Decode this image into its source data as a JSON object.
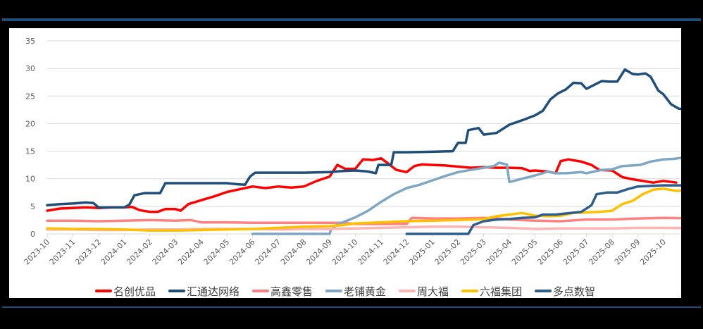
{
  "chart_data": {
    "type": "line",
    "title": "",
    "xlabel": "",
    "ylabel": "",
    "ylim": [
      0,
      35
    ],
    "yticks": [
      0,
      5,
      10,
      15,
      20,
      25,
      30,
      35
    ],
    "grid": true,
    "legend_position": "bottom",
    "x": [
      "2023-10",
      "2023-11",
      "2023-12",
      "2024-01",
      "2024-02",
      "2024-03",
      "2024-04",
      "2024-05",
      "2024-06",
      "2024-07",
      "2024-08",
      "2024-09",
      "2024-10",
      "2024-11",
      "2024-12",
      "2025-01",
      "2025-02",
      "2025-03",
      "2025-04",
      "2025-05",
      "2025-06",
      "2025-07",
      "2025-08",
      "2025-09",
      "2025-10"
    ],
    "series": [
      {
        "name": "名创优品",
        "color": "#ff0000",
        "points": [
          [
            0,
            4.2
          ],
          [
            0.5,
            4.6
          ],
          [
            1,
            4.7
          ],
          [
            1.5,
            4.8
          ],
          [
            2,
            4.7
          ],
          [
            2.5,
            4.8
          ],
          [
            3,
            4.8
          ],
          [
            3.3,
            4.9
          ],
          [
            3.6,
            4.3
          ],
          [
            4,
            4.0
          ],
          [
            4.3,
            4.0
          ],
          [
            4.6,
            4.5
          ],
          [
            5,
            4.5
          ],
          [
            5.2,
            4.2
          ],
          [
            5.5,
            5.4
          ],
          [
            6,
            6.1
          ],
          [
            6.5,
            6.8
          ],
          [
            7,
            7.6
          ],
          [
            7.5,
            8.1
          ],
          [
            8,
            8.6
          ],
          [
            8.5,
            8.3
          ],
          [
            9,
            8.6
          ],
          [
            9.5,
            8.4
          ],
          [
            10,
            8.6
          ],
          [
            10.5,
            9.6
          ],
          [
            11,
            10.4
          ],
          [
            11.3,
            12.5
          ],
          [
            11.6,
            11.8
          ],
          [
            12,
            11.8
          ],
          [
            12.3,
            13.5
          ],
          [
            12.7,
            13.4
          ],
          [
            13,
            13.7
          ],
          [
            13.3,
            12.7
          ],
          [
            13.6,
            11.6
          ],
          [
            14,
            11.2
          ],
          [
            14.3,
            12.3
          ],
          [
            14.6,
            12.6
          ],
          [
            15,
            12.5
          ],
          [
            15.5,
            12.4
          ],
          [
            16,
            12.2
          ],
          [
            16.5,
            12.0
          ],
          [
            17,
            12.1
          ],
          [
            17.5,
            12.0
          ],
          [
            18,
            12.0
          ],
          [
            18.5,
            11.9
          ],
          [
            18.8,
            11.4
          ],
          [
            19,
            11.5
          ],
          [
            19.5,
            11.3
          ],
          [
            19.8,
            11.0
          ],
          [
            20,
            13.2
          ],
          [
            20.3,
            13.5
          ],
          [
            20.8,
            13.1
          ],
          [
            21.2,
            12.5
          ],
          [
            21.5,
            11.6
          ],
          [
            22,
            11.5
          ],
          [
            22.4,
            10.3
          ],
          [
            22.8,
            9.9
          ],
          [
            23.2,
            9.6
          ],
          [
            23.6,
            9.3
          ],
          [
            24,
            9.6
          ],
          [
            24.5,
            9.3
          ]
        ]
      },
      {
        "name": "汇通达网络",
        "color": "#1f4e79",
        "points": [
          [
            0,
            5.2
          ],
          [
            0.5,
            5.4
          ],
          [
            1,
            5.5
          ],
          [
            1.5,
            5.7
          ],
          [
            1.8,
            5.6
          ],
          [
            2,
            4.8
          ],
          [
            2.5,
            4.8
          ],
          [
            3,
            4.8
          ],
          [
            3.2,
            5.3
          ],
          [
            3.4,
            7.0
          ],
          [
            3.8,
            7.4
          ],
          [
            4,
            7.4
          ],
          [
            4.4,
            7.4
          ],
          [
            4.6,
            9.2
          ],
          [
            5,
            9.2
          ],
          [
            6,
            9.2
          ],
          [
            7,
            9.2
          ],
          [
            7.4,
            9.0
          ],
          [
            7.7,
            8.9
          ],
          [
            7.9,
            10.4
          ],
          [
            8.1,
            11.1
          ],
          [
            9,
            11.1
          ],
          [
            10,
            11.1
          ],
          [
            11,
            11.2
          ],
          [
            11.5,
            11.4
          ],
          [
            12,
            11.5
          ],
          [
            12.5,
            11.3
          ],
          [
            12.8,
            11.0
          ],
          [
            12.9,
            12.5
          ],
          [
            13.4,
            12.5
          ],
          [
            13.5,
            14.8
          ],
          [
            14,
            14.8
          ],
          [
            15,
            14.9
          ],
          [
            15.8,
            15.0
          ],
          [
            16,
            16.5
          ],
          [
            16.3,
            16.5
          ],
          [
            16.4,
            18.8
          ],
          [
            16.8,
            19.2
          ],
          [
            17,
            18.0
          ],
          [
            17.5,
            18.3
          ],
          [
            18,
            19.8
          ],
          [
            18.5,
            20.6
          ],
          [
            19,
            21.5
          ],
          [
            19.3,
            22.3
          ],
          [
            19.6,
            24.4
          ],
          [
            19.9,
            25.5
          ],
          [
            20.2,
            26.2
          ],
          [
            20.5,
            27.4
          ],
          [
            20.8,
            27.3
          ],
          [
            21,
            26.3
          ],
          [
            21.3,
            27.0
          ],
          [
            21.6,
            27.7
          ],
          [
            21.9,
            27.6
          ],
          [
            22.2,
            27.6
          ],
          [
            22.5,
            29.8
          ],
          [
            22.8,
            29.0
          ],
          [
            23,
            28.9
          ],
          [
            23.3,
            29.1
          ],
          [
            23.5,
            28.5
          ],
          [
            23.8,
            26.0
          ],
          [
            24,
            25.3
          ],
          [
            24.3,
            23.5
          ],
          [
            24.6,
            22.7
          ],
          [
            24.9,
            22.6
          ],
          [
            25.2,
            21.6
          ],
          [
            25.5,
            21.3
          ]
        ]
      },
      {
        "name": "高鑫零售",
        "color": "#ff8080",
        "points": [
          [
            0,
            2.4
          ],
          [
            1,
            2.4
          ],
          [
            2,
            2.3
          ],
          [
            3,
            2.4
          ],
          [
            4,
            2.5
          ],
          [
            5,
            2.4
          ],
          [
            5.6,
            2.5
          ],
          [
            6,
            2.1
          ],
          [
            7,
            2.1
          ],
          [
            8,
            2.0
          ],
          [
            9,
            2.0
          ],
          [
            10,
            2.0
          ],
          [
            11,
            2.0
          ],
          [
            11.5,
            2.0
          ],
          [
            12,
            1.8
          ],
          [
            13,
            1.8
          ],
          [
            14,
            1.8
          ],
          [
            14.2,
            2.9
          ],
          [
            15,
            2.8
          ],
          [
            16,
            2.8
          ],
          [
            17,
            2.9
          ],
          [
            17.5,
            2.8
          ],
          [
            18,
            2.6
          ],
          [
            19,
            2.4
          ],
          [
            20,
            2.3
          ],
          [
            21,
            2.6
          ],
          [
            22,
            2.6
          ],
          [
            23,
            2.8
          ],
          [
            24,
            2.9
          ],
          [
            25.5,
            2.8
          ]
        ]
      },
      {
        "name": "老铺黄金",
        "color": "#7fa7c4",
        "points": [
          [
            8,
            0
          ],
          [
            11,
            0
          ],
          [
            11.05,
            0.8
          ],
          [
            11.3,
            1.7
          ],
          [
            12,
            3.0
          ],
          [
            12.5,
            4.2
          ],
          [
            13,
            5.8
          ],
          [
            13.5,
            7.2
          ],
          [
            14,
            8.3
          ],
          [
            14.5,
            8.9
          ],
          [
            15,
            9.7
          ],
          [
            15.5,
            10.5
          ],
          [
            16,
            11.2
          ],
          [
            16.5,
            11.6
          ],
          [
            17,
            12.0
          ],
          [
            17.4,
            12.3
          ],
          [
            17.6,
            12.9
          ],
          [
            17.9,
            12.6
          ],
          [
            18,
            9.4
          ],
          [
            18.5,
            10.0
          ],
          [
            19,
            10.6
          ],
          [
            19.3,
            11.0
          ],
          [
            19.5,
            11.3
          ],
          [
            19.8,
            11.0
          ],
          [
            20.2,
            11.0
          ],
          [
            20.5,
            11.1
          ],
          [
            20.8,
            11.2
          ],
          [
            21,
            11.0
          ],
          [
            21.3,
            11.3
          ],
          [
            21.6,
            11.6
          ],
          [
            22,
            11.7
          ],
          [
            22.4,
            12.3
          ],
          [
            22.8,
            12.4
          ],
          [
            23.1,
            12.5
          ],
          [
            23.5,
            13.1
          ],
          [
            24,
            13.5
          ],
          [
            24.4,
            13.6
          ],
          [
            24.7,
            13.8
          ],
          [
            24.9,
            12.4
          ],
          [
            25.2,
            12.8
          ],
          [
            25.5,
            13.0
          ]
        ]
      },
      {
        "name": "周大福",
        "color": "#ffb3b3",
        "points": [
          [
            0,
            0.8
          ],
          [
            1,
            0.8
          ],
          [
            2,
            0.7
          ],
          [
            3,
            0.7
          ],
          [
            4,
            0.8
          ],
          [
            5,
            0.8
          ],
          [
            6,
            0.9
          ],
          [
            7,
            0.9
          ],
          [
            8,
            0.9
          ],
          [
            9,
            0.8
          ],
          [
            10,
            0.9
          ],
          [
            11,
            0.9
          ],
          [
            12,
            1.0
          ],
          [
            13,
            1.1
          ],
          [
            14,
            1.2
          ],
          [
            15,
            1.3
          ],
          [
            16,
            1.3
          ],
          [
            17,
            1.2
          ],
          [
            18,
            1.1
          ],
          [
            19,
            0.9
          ],
          [
            20,
            1.0
          ],
          [
            21,
            1.0
          ],
          [
            22,
            1.0
          ],
          [
            23,
            1.1
          ],
          [
            24,
            1.1
          ],
          [
            25.5,
            1.0
          ]
        ]
      },
      {
        "name": "六福集团",
        "color": "#ffc000",
        "points": [
          [
            0,
            1.0
          ],
          [
            1,
            0.9
          ],
          [
            2,
            0.9
          ],
          [
            3,
            0.8
          ],
          [
            4,
            0.6
          ],
          [
            5,
            0.6
          ],
          [
            6,
            0.7
          ],
          [
            7,
            0.8
          ],
          [
            8,
            0.9
          ],
          [
            9,
            1.1
          ],
          [
            10,
            1.3
          ],
          [
            11,
            1.4
          ],
          [
            11.5,
            1.6
          ],
          [
            12,
            1.9
          ],
          [
            13,
            2.1
          ],
          [
            14,
            2.3
          ],
          [
            15,
            2.4
          ],
          [
            16,
            2.5
          ],
          [
            17,
            2.7
          ],
          [
            17.5,
            3.2
          ],
          [
            18,
            3.5
          ],
          [
            18.5,
            3.8
          ],
          [
            19,
            3.3
          ],
          [
            19.5,
            3.2
          ],
          [
            20,
            3.3
          ],
          [
            20.5,
            3.8
          ],
          [
            21,
            3.9
          ],
          [
            21.5,
            4.0
          ],
          [
            22,
            4.2
          ],
          [
            22.4,
            5.4
          ],
          [
            22.8,
            6.0
          ],
          [
            23.2,
            7.2
          ],
          [
            23.6,
            8.0
          ],
          [
            24,
            8.2
          ],
          [
            24.5,
            7.8
          ],
          [
            25,
            7.9
          ],
          [
            25.5,
            7.5
          ]
        ]
      },
      {
        "name": "多点数智",
        "color": "#2e5e8e",
        "points": [
          [
            14,
            0
          ],
          [
            16,
            0
          ],
          [
            16.4,
            0
          ],
          [
            16.6,
            1.6
          ],
          [
            17,
            2.3
          ],
          [
            17.5,
            2.6
          ],
          [
            18,
            2.7
          ],
          [
            18.5,
            2.9
          ],
          [
            19,
            3.0
          ],
          [
            19.3,
            3.5
          ],
          [
            19.8,
            3.5
          ],
          [
            20.2,
            3.7
          ],
          [
            20.8,
            4.0
          ],
          [
            21.2,
            5.2
          ],
          [
            21.4,
            7.2
          ],
          [
            21.8,
            7.5
          ],
          [
            22.2,
            7.5
          ],
          [
            22.6,
            8.1
          ],
          [
            23,
            8.6
          ],
          [
            23.5,
            8.7
          ],
          [
            24,
            8.8
          ],
          [
            25,
            8.8
          ],
          [
            25.5,
            8.9
          ]
        ]
      }
    ]
  },
  "axis": {
    "y_labels": [
      "0",
      "5",
      "10",
      "15",
      "20",
      "25",
      "30",
      "35"
    ],
    "x_labels": [
      "2023-10",
      "2023-11",
      "2023-12",
      "2024-01",
      "2024-02",
      "2024-03",
      "2024-04",
      "2024-05",
      "2024-06",
      "2024-07",
      "2024-08",
      "2024-09",
      "2024-10",
      "2024-11",
      "2024-12",
      "2025-01",
      "2025-02",
      "2025-03",
      "2025-04",
      "2025-05",
      "2025-06",
      "2025-07",
      "2025-08",
      "2025-09",
      "2025-10"
    ]
  },
  "legend": [
    {
      "label": "名创优品",
      "color": "#ff0000"
    },
    {
      "label": "汇通达网络",
      "color": "#1f4e79"
    },
    {
      "label": "高鑫零售",
      "color": "#ff8080"
    },
    {
      "label": "老铺黄金",
      "color": "#7fa7c4"
    },
    {
      "label": "周大福",
      "color": "#ffb3b3"
    },
    {
      "label": "六福集团",
      "color": "#ffc000"
    },
    {
      "label": "多点数智",
      "color": "#2e5e8e"
    }
  ]
}
